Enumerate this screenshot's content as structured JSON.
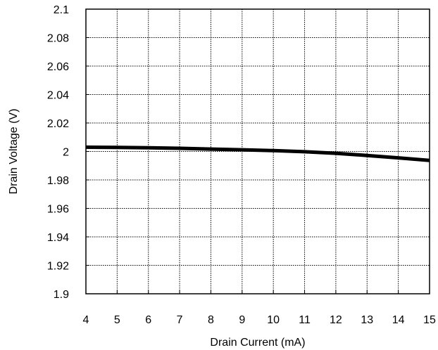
{
  "chart_data": {
    "type": "line",
    "xlabel": "Drain Current (mA)",
    "ylabel": "Drain Voltage (V)",
    "xlim": [
      4,
      15
    ],
    "ylim": [
      1.9,
      2.1
    ],
    "x_ticks": [
      "4",
      "5",
      "6",
      "7",
      "8",
      "9",
      "10",
      "11",
      "12",
      "13",
      "14",
      "15"
    ],
    "y_ticks": [
      "2.1",
      "2.08",
      "2.06",
      "2.04",
      "2.02",
      "2",
      "1.98",
      "1.96",
      "1.94",
      "1.92",
      "1.9"
    ],
    "grid": "dashed",
    "series": [
      {
        "color": "#000000",
        "x": [
          4,
          5,
          6,
          7,
          8,
          9,
          10,
          11,
          12,
          13,
          14,
          15
        ],
        "y": [
          2.003,
          2.0028,
          2.0026,
          2.0022,
          2.0017,
          2.0012,
          2.0006,
          1.9998,
          1.9987,
          1.9972,
          1.9955,
          1.9937
        ]
      }
    ]
  }
}
